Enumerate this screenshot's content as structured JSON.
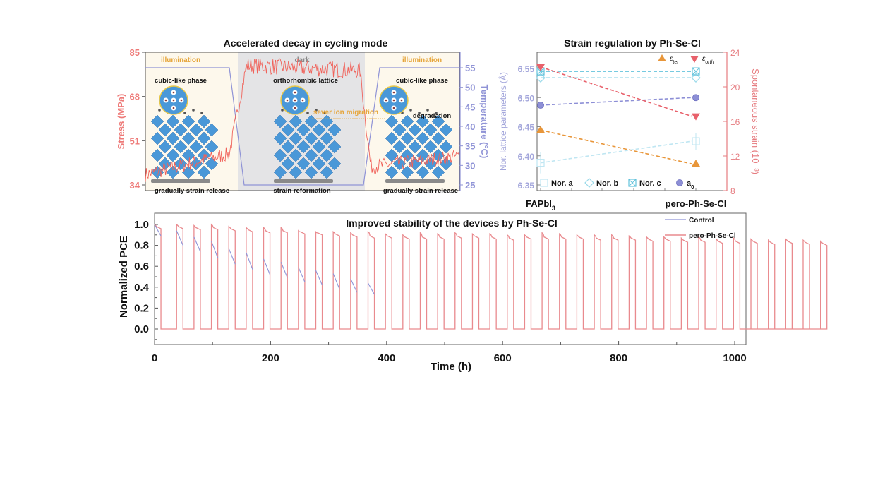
{
  "chart_data": [
    {
      "type": "line",
      "title": "Accelerated decay in cycling mode",
      "xlabel": "",
      "ylabel": "Stress (MPa)",
      "ylabel_right": "Temperature (°C)",
      "ylim": [
        34,
        85
      ],
      "ylim_right": [
        23,
        58
      ],
      "yticks": [
        34,
        51,
        68,
        85
      ],
      "yticks_right": [
        25,
        30,
        35,
        40,
        45,
        50,
        55
      ],
      "phases": [
        {
          "label": "illumination",
          "state": "light",
          "temperature_c": 55,
          "stress_mpa_mean": 40,
          "stage": "cubic-like phase",
          "caption": "gradually strain release"
        },
        {
          "label": "dark",
          "state": "dark",
          "temperature_c": 25,
          "stress_mpa_mean": 80,
          "stage": "orthorhombic lattice",
          "caption": "strain reformation"
        },
        {
          "label": "illumination",
          "state": "light",
          "temperature_c": 55,
          "stress_mpa_mean": 44,
          "stage": "cubic-like phase",
          "caption": "gradually strain release"
        }
      ],
      "annotations": [
        "sever ion migration",
        "degradation"
      ],
      "series": [
        {
          "name": "Stress",
          "color": "#f0625a"
        },
        {
          "name": "Temperature",
          "color": "#8f93d6"
        }
      ]
    },
    {
      "type": "scatter",
      "title": "Strain regulation by Ph-Se-Cl",
      "categories": [
        "FAPbI3",
        "pero-Ph-Se-Cl"
      ],
      "category_labels": {
        "main": [
          "FAPbI",
          "pero-Ph-Se-Cl"
        ],
        "sub": [
          "3",
          ""
        ]
      },
      "ylabel": "Nor. lattice parameters (Å)",
      "ylabel_right": "Spontaneous strain (10⁻³)",
      "ylim": [
        6.345,
        6.575
      ],
      "ylim_right": [
        8,
        24
      ],
      "yticks": [
        6.35,
        6.4,
        6.45,
        6.5,
        6.55
      ],
      "yticks_right": [
        8,
        12,
        16,
        20,
        24
      ],
      "series": [
        {
          "name": "Nor. a",
          "axis": "left",
          "values": [
            6.388,
            6.425
          ],
          "color": "#bfe6f2",
          "marker": "square-open"
        },
        {
          "name": "Nor. b",
          "axis": "left",
          "values": [
            6.534,
            6.534
          ],
          "color": "#9cdaea",
          "marker": "diamond-open"
        },
        {
          "name": "Nor. c",
          "axis": "left",
          "values": [
            6.545,
            6.545
          ],
          "color": "#63c3dc",
          "marker": "crossed-square"
        },
        {
          "name": "a0",
          "axis": "left",
          "values": [
            6.487,
            6.5
          ],
          "color": "#8d8fd6",
          "marker": "circle"
        },
        {
          "name": "ε_tet",
          "axis": "right",
          "values": [
            15.0,
            11.1
          ],
          "color": "#e8963a",
          "marker": "triangle-up"
        },
        {
          "name": "ε_orth",
          "axis": "right",
          "values": [
            22.3,
            16.6
          ],
          "color": "#e8616b",
          "marker": "triangle-down"
        }
      ],
      "legend_top": [
        {
          "main": "ε",
          "sub": "tet"
        },
        {
          "main": "ε",
          "sub": "orth"
        }
      ],
      "legend_bottom": [
        {
          "main": "Nor. a",
          "sub": ""
        },
        {
          "main": "Nor. b",
          "sub": ""
        },
        {
          "main": "Nor. c",
          "sub": ""
        },
        {
          "main": "a",
          "sub": "0"
        }
      ]
    },
    {
      "type": "line",
      "title": "Improved stability of the devices by Ph-Se-Cl",
      "xlabel": "Time (h)",
      "ylabel": "Normalized PCE",
      "xlim": [
        0,
        1020
      ],
      "ylim": [
        -0.15,
        1.1
      ],
      "xticks": [
        0,
        200,
        400,
        600,
        800,
        1000
      ],
      "yticks": [
        "0.0",
        "0.2",
        "0.4",
        "0.6",
        "0.8",
        "1.0"
      ],
      "cycle_period_h": 30,
      "light_duration_h": 11,
      "series": [
        {
          "name": "Control",
          "color": "#8f95d8",
          "cycle_start_end": [
            [
              1.0,
              0.89
            ],
            [
              0.94,
              0.8
            ],
            [
              0.88,
              0.74
            ],
            [
              0.84,
              0.68
            ],
            [
              0.77,
              0.62
            ],
            [
              0.73,
              0.57
            ],
            [
              0.67,
              0.52
            ],
            [
              0.64,
              0.49
            ],
            [
              0.59,
              0.45
            ],
            [
              0.56,
              0.42
            ],
            [
              0.53,
              0.38
            ],
            [
              0.48,
              0.35
            ],
            [
              0.44,
              0.33
            ]
          ]
        },
        {
          "name": "pero-Ph-Se-Cl",
          "color": "#e98a8e",
          "cycle_start_end": [
            [
              1.0,
              0.96
            ],
            [
              1.0,
              0.96
            ],
            [
              0.99,
              0.95
            ],
            [
              1.0,
              0.95
            ],
            [
              0.98,
              0.94
            ],
            [
              0.97,
              0.93
            ],
            [
              0.97,
              0.92
            ],
            [
              0.97,
              0.92
            ],
            [
              0.94,
              0.91
            ],
            [
              0.93,
              0.9
            ],
            [
              0.93,
              0.89
            ],
            [
              0.92,
              0.88
            ],
            [
              0.93,
              0.87
            ],
            [
              0.91,
              0.87
            ],
            [
              0.9,
              0.86
            ],
            [
              0.92,
              0.86
            ],
            [
              0.91,
              0.86
            ],
            [
              0.92,
              0.87
            ],
            [
              0.91,
              0.87
            ],
            [
              0.91,
              0.86
            ],
            [
              0.9,
              0.85
            ],
            [
              0.9,
              0.86
            ],
            [
              0.92,
              0.86
            ],
            [
              0.91,
              0.86
            ],
            [
              0.9,
              0.86
            ],
            [
              0.9,
              0.85
            ],
            [
              0.9,
              0.85
            ],
            [
              0.89,
              0.85
            ],
            [
              0.88,
              0.84
            ],
            [
              0.88,
              0.84
            ],
            [
              0.87,
              0.83
            ],
            [
              0.88,
              0.83
            ],
            [
              0.86,
              0.82
            ],
            [
              0.87,
              0.82
            ],
            [
              0.86,
              0.82
            ],
            [
              0.85,
              0.81
            ],
            [
              0.86,
              0.82
            ],
            [
              0.85,
              0.81
            ],
            [
              0.84,
              0.8
            ]
          ]
        }
      ],
      "legend": [
        "Control",
        "pero-Ph-Se-Cl"
      ]
    }
  ],
  "colors": {
    "stress": "#f0625a",
    "temperature": "#8f93d6",
    "illumination_text": "#e6a53a",
    "panel_bg_light": "#fdf8ec",
    "panel_bg_dark": "#e4e4e6",
    "crystal": "#3d8fd4"
  }
}
